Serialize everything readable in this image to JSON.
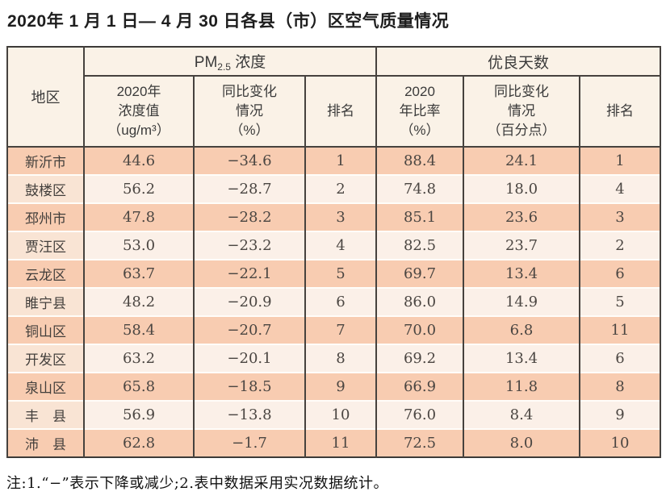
{
  "title": "2020年 1 月 1 日— 4 月 30 日各县（市）区空气质量情况",
  "note": "注:1.“−”表示下降或减少;2.表中数据采用实况数据统计。",
  "colors": {
    "row_odd": "#f8ccb1",
    "row_even": "#fbf0e8",
    "region_even": "#f9e4d4",
    "header_bg": "#faf2e7",
    "border_dark": "#46423e",
    "row_separator": "#fffdf9"
  },
  "header": {
    "region": "地区",
    "pm25_group": {
      "base": "PM",
      "sub": "2.5",
      "rest": " 浓度"
    },
    "good_days_group": "优良天数",
    "col_pm_value": "2020年\n浓度值\n（ug/m³）",
    "col_pm_change": "同比变化\n情况\n（%）",
    "col_pm_rank": "排名",
    "col_gd_ratio": "2020\n年比率\n（%）",
    "col_gd_change": "同比变化\n情况\n（百分点）",
    "col_gd_rank": "排名"
  },
  "chart_data": {
    "type": "table",
    "title": "2020年 1 月 1 日— 4 月 30 日各县（市）区空气质量情况",
    "column_groups": [
      {
        "label": "地区",
        "colspan": 1
      },
      {
        "label": "PM2.5 浓度",
        "colspan": 3
      },
      {
        "label": "优良天数",
        "colspan": 3
      }
    ],
    "columns": [
      "地区",
      "2020年浓度值（ug/m³）",
      "同比变化情况（%）",
      "排名",
      "2020年比率（%）",
      "同比变化情况（百分点）",
      "排名"
    ],
    "rows": [
      [
        "新沂市",
        "44.6",
        "−34.6",
        "1",
        "88.4",
        "24.1",
        "1"
      ],
      [
        "鼓楼区",
        "56.2",
        "−28.7",
        "2",
        "74.8",
        "18.0",
        "4"
      ],
      [
        "邳州市",
        "47.8",
        "−28.2",
        "3",
        "85.1",
        "23.6",
        "3"
      ],
      [
        "贾汪区",
        "53.0",
        "−23.2",
        "4",
        "82.5",
        "23.7",
        "2"
      ],
      [
        "云龙区",
        "63.7",
        "−22.1",
        "5",
        "69.7",
        "13.4",
        "6"
      ],
      [
        "睢宁县",
        "48.2",
        "−20.9",
        "6",
        "86.0",
        "14.9",
        "5"
      ],
      [
        "铜山区",
        "58.4",
        "−20.7",
        "7",
        "70.0",
        "6.8",
        "11"
      ],
      [
        "开发区",
        "63.2",
        "−20.1",
        "8",
        "69.2",
        "13.4",
        "6"
      ],
      [
        "泉山区",
        "65.8",
        "−18.5",
        "9",
        "66.9",
        "11.8",
        "8"
      ],
      [
        "丰　县",
        "56.9",
        "−13.8",
        "10",
        "76.0",
        "8.4",
        "9"
      ],
      [
        "沛　县",
        "62.8",
        "−1.7",
        "11",
        "72.5",
        "8.0",
        "10"
      ]
    ],
    "note": "注:1.“−”表示下降或减少;2.表中数据采用实况数据统计。"
  }
}
